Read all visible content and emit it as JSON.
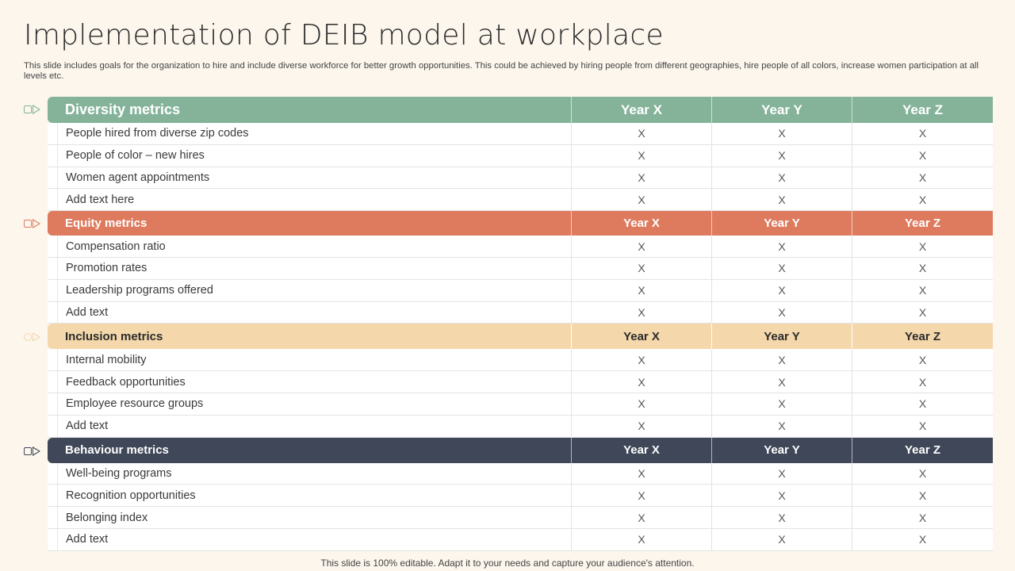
{
  "title": "Implementation  of DEIB model at workplace",
  "subtitle": "This slide includes goals for the organization to hire and include diverse workforce for better growth opportunities. This could be achieved by hiring people from different geographies, hire people of all colors, increase women participation at all levels etc.",
  "footer": "This slide is 100% editable. Adapt it to your needs and capture your audience's attention.",
  "colors": {
    "diversity": "#84b39a",
    "equity": "#de7b5f",
    "inclusion": "#f4d7ab",
    "behaviour": "#3f4758"
  },
  "sections": [
    {
      "name": "Diversity metrics",
      "years": [
        "Year X",
        "Year Y",
        "Year Z"
      ],
      "rows": [
        {
          "label": "People hired from diverse zip codes",
          "values": [
            "X",
            "X",
            "X"
          ]
        },
        {
          "label": "People of color – new hires",
          "values": [
            "X",
            "X",
            "X"
          ]
        },
        {
          "label": "Women agent appointments",
          "values": [
            "X",
            "X",
            "X"
          ]
        },
        {
          "label": "Add text here",
          "values": [
            "X",
            "X",
            "X"
          ]
        }
      ]
    },
    {
      "name": "Equity metrics",
      "years": [
        "Year X",
        "Year Y",
        "Year Z"
      ],
      "rows": [
        {
          "label": "Compensation ratio",
          "values": [
            "X",
            "X",
            "X"
          ]
        },
        {
          "label": "Promotion rates",
          "values": [
            "X",
            "X",
            "X"
          ]
        },
        {
          "label": "Leadership programs offered",
          "values": [
            "X",
            "X",
            "X"
          ]
        },
        {
          "label": "Add text",
          "values": [
            "X",
            "X",
            "X"
          ]
        }
      ]
    },
    {
      "name": "Inclusion metrics",
      "years": [
        "Year X",
        "Year Y",
        "Year Z"
      ],
      "rows": [
        {
          "label": "Internal mobility",
          "values": [
            "X",
            "X",
            "X"
          ]
        },
        {
          "label": "Feedback opportunities",
          "values": [
            "X",
            "X",
            "X"
          ]
        },
        {
          "label": "Employee resource groups",
          "values": [
            "X",
            "X",
            "X"
          ]
        },
        {
          "label": "Add text",
          "values": [
            "X",
            "X",
            "X"
          ]
        }
      ]
    },
    {
      "name": "Behaviour metrics",
      "years": [
        "Year X",
        "Year Y",
        "Year Z"
      ],
      "rows": [
        {
          "label": "Well-being programs",
          "values": [
            "X",
            "X",
            "X"
          ]
        },
        {
          "label": "Recognition opportunities",
          "values": [
            "X",
            "X",
            "X"
          ]
        },
        {
          "label": "Belonging index",
          "values": [
            "X",
            "X",
            "X"
          ]
        },
        {
          "label": "Add text",
          "values": [
            "X",
            "X",
            "X"
          ]
        }
      ]
    }
  ]
}
